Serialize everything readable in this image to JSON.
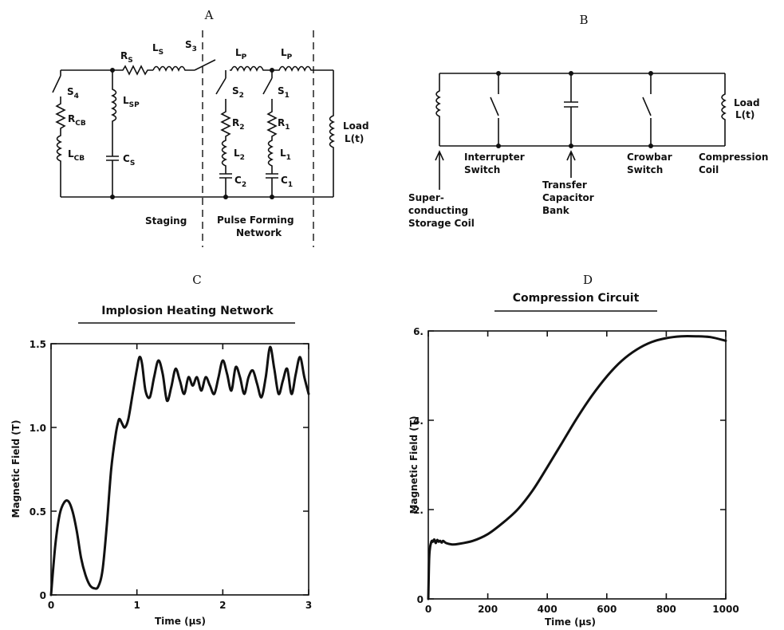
{
  "panels": {
    "a": "A",
    "b": "B",
    "c": "C",
    "d": "D"
  },
  "circuit_a": {
    "rs": "R",
    "rs_sub": "S",
    "ls": "L",
    "ls_sub": "S",
    "s3": "S",
    "s3_sub": "3",
    "lp1": "L",
    "lp1_sub": "P",
    "lp2": "L",
    "lp2_sub": "P",
    "s4": "S",
    "s4_sub": "4",
    "rcb": "R",
    "rcb_sub": "CB",
    "lcb": "L",
    "lcb_sub": "CB",
    "lsp": "L",
    "lsp_sub": "SP",
    "cs": "C",
    "cs_sub": "S",
    "s2": "S",
    "s2_sub": "2",
    "r2": "R",
    "r2_sub": "2",
    "l2": "L",
    "l2_sub": "2",
    "c2": "C",
    "c2_sub": "2",
    "s1": "S",
    "s1_sub": "1",
    "r1": "R",
    "r1_sub": "1",
    "l1": "L",
    "l1_sub": "1",
    "c1": "C",
    "c1_sub": "1",
    "load_line1": "Load",
    "load_line2": "L(t)",
    "staging": "Staging",
    "pfn_line1": "Pulse Forming",
    "pfn_line2": "Network"
  },
  "circuit_b": {
    "load_line1": "Load",
    "load_line2": "L(t)",
    "interrupter_line1": "Interrupter",
    "interrupter_line2": "Switch",
    "crowbar_line1": "Crowbar",
    "crowbar_line2": "Switch",
    "compression_line1": "Compression",
    "compression_line2": "Coil",
    "storage_line1": "Super-",
    "storage_line2": "conducting",
    "storage_line3": "Storage Coil",
    "transfer_line1": "Transfer",
    "transfer_line2": "Capacitor",
    "transfer_line3": "Bank"
  },
  "chart_data": [
    {
      "type": "line",
      "title": "Implosion Heating Network",
      "xlabel": "Time (μs)",
      "ylabel": "Magnetic Field (T)",
      "xlim": [
        0,
        3
      ],
      "ylim": [
        0,
        1.5
      ],
      "xticks": [
        "0",
        "1",
        "2",
        "3"
      ],
      "yticks": [
        "0",
        "0.5",
        "1.0",
        "1.5"
      ],
      "series": [
        {
          "x": [
            0,
            0.05,
            0.1,
            0.15,
            0.2,
            0.25,
            0.3,
            0.35,
            0.4,
            0.45,
            0.5,
            0.55,
            0.6,
            0.65,
            0.7,
            0.75,
            0.78,
            0.8,
            0.83,
            0.86,
            0.9,
            0.95,
            1.0,
            1.03,
            1.06,
            1.1,
            1.15,
            1.2,
            1.25,
            1.3,
            1.35,
            1.4,
            1.45,
            1.5,
            1.55,
            1.6,
            1.65,
            1.7,
            1.75,
            1.8,
            1.85,
            1.9,
            1.95,
            2.0,
            2.05,
            2.1,
            2.15,
            2.2,
            2.25,
            2.3,
            2.35,
            2.4,
            2.45,
            2.5,
            2.55,
            2.6,
            2.65,
            2.7,
            2.75,
            2.8,
            2.85,
            2.9,
            2.95,
            3.0
          ],
          "y": [
            0.0,
            0.3,
            0.48,
            0.55,
            0.56,
            0.5,
            0.38,
            0.22,
            0.12,
            0.06,
            0.04,
            0.05,
            0.15,
            0.42,
            0.75,
            0.95,
            1.03,
            1.05,
            1.02,
            1.0,
            1.05,
            1.2,
            1.35,
            1.42,
            1.38,
            1.22,
            1.18,
            1.3,
            1.4,
            1.32,
            1.16,
            1.24,
            1.35,
            1.28,
            1.2,
            1.3,
            1.25,
            1.3,
            1.22,
            1.3,
            1.25,
            1.2,
            1.3,
            1.4,
            1.32,
            1.22,
            1.36,
            1.3,
            1.2,
            1.3,
            1.34,
            1.26,
            1.18,
            1.3,
            1.48,
            1.35,
            1.2,
            1.28,
            1.35,
            1.2,
            1.32,
            1.42,
            1.3,
            1.2
          ]
        }
      ]
    },
    {
      "type": "line",
      "title": "Compression Circuit",
      "xlabel": "Time (μs)",
      "ylabel": "Magnetic Field (T)",
      "xlim": [
        0,
        1000
      ],
      "ylim": [
        0,
        6
      ],
      "xticks": [
        "0",
        "200",
        "400",
        "600",
        "800",
        "1000"
      ],
      "yticks": [
        "0",
        "2.",
        "4.",
        "6."
      ],
      "series": [
        {
          "x": [
            0,
            3,
            6,
            9,
            12,
            15,
            20,
            25,
            30,
            35,
            40,
            45,
            50,
            60,
            80,
            100,
            150,
            200,
            250,
            300,
            350,
            400,
            450,
            500,
            550,
            600,
            650,
            700,
            750,
            800,
            850,
            900,
            950,
            1000
          ],
          "y": [
            0.0,
            0.9,
            1.15,
            1.25,
            1.3,
            1.28,
            1.33,
            1.25,
            1.32,
            1.28,
            1.3,
            1.26,
            1.3,
            1.25,
            1.22,
            1.23,
            1.3,
            1.45,
            1.7,
            2.0,
            2.42,
            2.95,
            3.5,
            4.05,
            4.55,
            4.98,
            5.33,
            5.58,
            5.75,
            5.84,
            5.88,
            5.88,
            5.86,
            5.78
          ]
        }
      ]
    }
  ]
}
